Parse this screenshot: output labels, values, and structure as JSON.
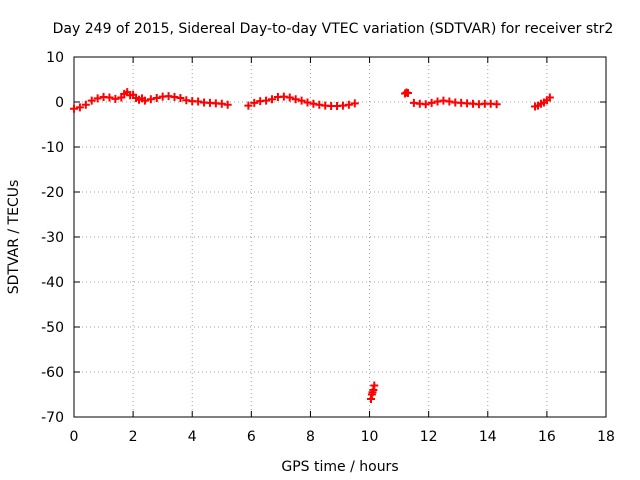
{
  "chart_data": {
    "type": "scatter",
    "title": "Day 249 of 2015, Sidereal Day-to-day VTEC variation (SDTVAR) for receiver str2",
    "xlabel": "GPS time / hours",
    "ylabel": "SDTVAR / TECUs",
    "xlim": [
      0,
      18
    ],
    "ylim": [
      -70,
      10
    ],
    "xticks": [
      0,
      2,
      4,
      6,
      8,
      10,
      12,
      14,
      16,
      18
    ],
    "yticks": [
      10,
      0,
      -10,
      -20,
      -30,
      -40,
      -50,
      -60,
      -70
    ],
    "grid": true,
    "marker": "plus",
    "color": "#ff0000",
    "series": [
      {
        "name": "SDTVAR",
        "segments": [
          {
            "x": [
              0.0,
              0.2,
              0.4,
              0.6,
              0.8,
              1.0,
              1.2,
              1.4,
              1.6,
              1.7,
              1.8,
              1.9,
              2.0,
              2.1,
              2.2,
              2.3,
              2.4,
              2.6,
              2.8,
              3.0,
              3.2,
              3.4,
              3.6,
              3.8,
              4.0,
              4.2,
              4.4,
              4.6,
              4.8,
              5.0,
              5.2
            ],
            "y": [
              -1.5,
              -1.2,
              -0.6,
              0.3,
              0.8,
              1.1,
              1.0,
              0.7,
              1.0,
              1.8,
              2.2,
              1.5,
              1.6,
              0.9,
              0.5,
              0.8,
              0.3,
              0.6,
              0.9,
              1.2,
              1.3,
              1.1,
              0.9,
              0.4,
              0.2,
              0.1,
              -0.1,
              -0.2,
              -0.3,
              -0.4,
              -0.6
            ]
          },
          {
            "x": [
              5.9,
              6.1,
              6.3,
              6.5,
              6.7,
              6.9,
              7.1,
              7.3,
              7.5,
              7.7,
              7.9,
              8.1,
              8.3,
              8.5,
              8.7,
              8.9,
              9.1,
              9.3,
              9.5
            ],
            "y": [
              -0.8,
              -0.2,
              0.2,
              0.3,
              0.6,
              1.1,
              1.2,
              1.0,
              0.6,
              0.3,
              -0.1,
              -0.4,
              -0.6,
              -0.8,
              -0.9,
              -0.9,
              -0.8,
              -0.6,
              -0.3
            ]
          },
          {
            "x": [
              10.05,
              10.08,
              10.1,
              10.13,
              10.16
            ],
            "y": [
              -66.0,
              -65.0,
              -64.5,
              -64.0,
              -63.0
            ]
          },
          {
            "x": [
              11.2,
              11.25,
              11.3
            ],
            "y": [
              1.9,
              2.1,
              2.0
            ]
          },
          {
            "x": [
              11.5,
              11.7,
              11.9,
              12.1,
              12.3,
              12.5,
              12.7,
              12.9,
              13.1,
              13.3,
              13.5,
              13.7,
              13.9,
              14.1,
              14.3
            ],
            "y": [
              -0.2,
              -0.4,
              -0.5,
              -0.2,
              0.1,
              0.3,
              0.1,
              -0.1,
              -0.2,
              -0.3,
              -0.4,
              -0.5,
              -0.4,
              -0.4,
              -0.5
            ]
          },
          {
            "x": [
              15.6,
              15.7,
              15.8,
              15.9,
              16.0,
              16.1
            ],
            "y": [
              -1.0,
              -0.8,
              -0.4,
              -0.1,
              0.4,
              1.0
            ]
          }
        ]
      }
    ]
  }
}
